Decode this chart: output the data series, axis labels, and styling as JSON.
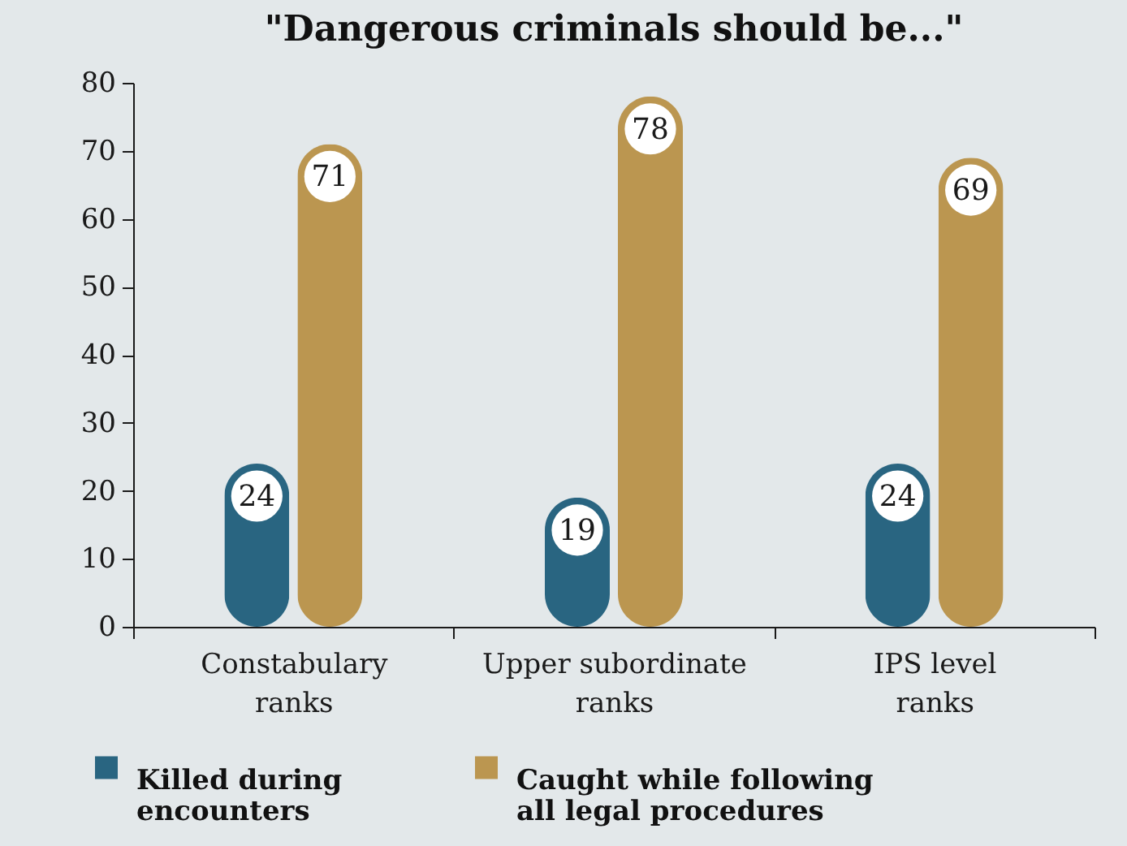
{
  "chart_data": {
    "type": "bar",
    "title": "\"Dangerous criminals should be...\"",
    "categories": [
      "Constabulary ranks",
      "Upper subordinate ranks",
      "IPS level ranks"
    ],
    "series": [
      {
        "name": "Killed during encounters",
        "color": "#296581",
        "values": [
          24,
          19,
          24
        ]
      },
      {
        "name": "Caught while following all legal procedures",
        "color": "#bb9650",
        "values": [
          71,
          78,
          69
        ]
      }
    ],
    "ylim": [
      0,
      80
    ],
    "yticks": [
      0,
      10,
      20,
      30,
      40,
      50,
      60,
      70,
      80
    ],
    "data_labels": true,
    "legend": "bottom"
  }
}
